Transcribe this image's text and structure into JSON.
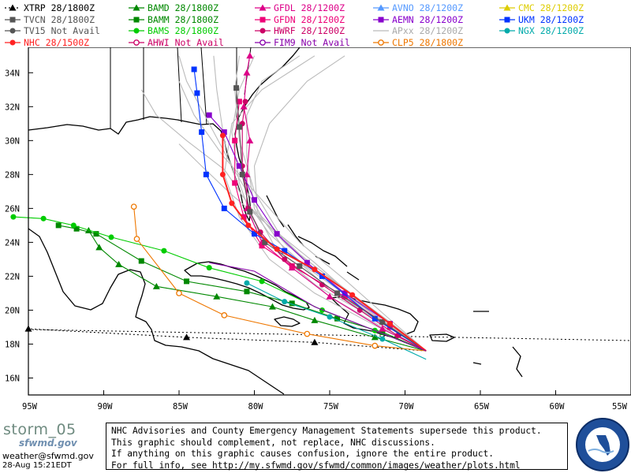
{
  "legend": [
    {
      "label": "XTRP 28/1800Z",
      "color": "#000000",
      "marker": "triangle",
      "dash": "dotted"
    },
    {
      "label": "BAMD 28/1800Z",
      "color": "#008800",
      "marker": "triangle",
      "dash": "solid"
    },
    {
      "label": "GFDL 28/1200Z",
      "color": "#dd0088",
      "marker": "triangle",
      "dash": "solid"
    },
    {
      "label": "AVNO 28/1200Z",
      "color": "#5599ff",
      "marker": "triangle",
      "dash": "solid"
    },
    {
      "label": "CMC  28/1200Z",
      "color": "#ddcc00",
      "marker": "triangle",
      "dash": "solid"
    },
    {
      "label": "TVCN 28/1800Z",
      "color": "#555555",
      "marker": "square",
      "dash": "solid"
    },
    {
      "label": "BAMM 28/1800Z",
      "color": "#008800",
      "marker": "square",
      "dash": "solid"
    },
    {
      "label": "GFDN 28/1200Z",
      "color": "#ee0077",
      "marker": "square",
      "dash": "solid"
    },
    {
      "label": "AEMN 28/1200Z",
      "color": "#8800cc",
      "marker": "square",
      "dash": "solid"
    },
    {
      "label": "UKM  28/1200Z",
      "color": "#0033ff",
      "marker": "square",
      "dash": "solid"
    },
    {
      "label": "TV15 Not Avail",
      "color": "#555555",
      "marker": "circle",
      "dash": "solid"
    },
    {
      "label": "BAMS 28/1800Z",
      "color": "#00cc00",
      "marker": "circle",
      "dash": "solid"
    },
    {
      "label": "HWRF 28/1200Z",
      "color": "#cc0066",
      "marker": "circle",
      "dash": "solid"
    },
    {
      "label": "APxx  28/1200Z",
      "color": "#bbbbbb",
      "marker": "none",
      "dash": "solid"
    },
    {
      "label": "NGX  28/1200Z",
      "color": "#00aaaa",
      "marker": "circle",
      "dash": "solid"
    },
    {
      "label": "NHC 28/1500Z",
      "color": "#ff2222",
      "marker": "circle",
      "dash": "solid"
    },
    {
      "label": "AHWI  Not Avail",
      "color": "#cc0066",
      "marker": "ring",
      "dash": "solid"
    },
    {
      "label": "FIM9  Not Avail",
      "color": "#8800aa",
      "marker": "ring",
      "dash": "solid"
    },
    {
      "label": "CLP5 28/1800Z",
      "color": "#ee7700",
      "marker": "ring",
      "dash": "solid"
    }
  ],
  "axes": {
    "lat_labels": [
      "34N",
      "32N",
      "30N",
      "28N",
      "26N",
      "24N",
      "22N",
      "20N",
      "18N",
      "16N"
    ],
    "lon_labels": [
      "95W",
      "90W",
      "85W",
      "80W",
      "75W",
      "70W",
      "65W",
      "60W",
      "55W"
    ],
    "lat_range": [
      15,
      35.5
    ],
    "lon_range": [
      -95,
      -55
    ]
  },
  "chart_data": {
    "type": "line",
    "origin": [
      -68.6,
      17.6
    ],
    "series": [
      {
        "name": "XTRP",
        "color": "#000000",
        "marker": "triangle",
        "points": [
          [
            -68.6,
            17.6
          ],
          [
            -76,
            18.1
          ],
          [
            -84.5,
            18.4
          ],
          [
            -95,
            18.9
          ]
        ]
      },
      {
        "name": "BAMD",
        "color": "#008800",
        "marker": "triangle",
        "points": [
          [
            -68.6,
            17.6
          ],
          [
            -72,
            18.4
          ],
          [
            -76,
            19.4
          ],
          [
            -78.8,
            20.2
          ],
          [
            -82.5,
            20.8
          ],
          [
            -86.5,
            21.4
          ],
          [
            -89,
            22.7
          ],
          [
            -90.3,
            23.7
          ],
          [
            -91,
            24.7
          ]
        ]
      },
      {
        "name": "BAMM",
        "color": "#008800",
        "marker": "square",
        "points": [
          [
            -68.6,
            17.6
          ],
          [
            -71.5,
            18.7
          ],
          [
            -74.5,
            19.5
          ],
          [
            -77.5,
            20.4
          ],
          [
            -80.5,
            21.1
          ],
          [
            -84.5,
            21.7
          ],
          [
            -87.5,
            22.9
          ],
          [
            -90.5,
            24.5
          ],
          [
            -91.8,
            24.8
          ],
          [
            -93,
            25
          ]
        ]
      },
      {
        "name": "BAMS",
        "color": "#00cc00",
        "marker": "circle",
        "points": [
          [
            -68.6,
            17.6
          ],
          [
            -72,
            18.8
          ],
          [
            -75.5,
            20
          ],
          [
            -79.5,
            21.7
          ],
          [
            -83,
            22.5
          ],
          [
            -86,
            23.5
          ],
          [
            -89.5,
            24.3
          ],
          [
            -92,
            25
          ],
          [
            -94,
            25.4
          ],
          [
            -96,
            25.5
          ]
        ]
      },
      {
        "name": "GFDL",
        "color": "#dd0088",
        "marker": "triangle",
        "points": [
          [
            -68.6,
            17.6
          ],
          [
            -71.5,
            18.9
          ],
          [
            -75,
            20.8
          ],
          [
            -77.5,
            22.5
          ],
          [
            -79.5,
            24
          ],
          [
            -80.5,
            26
          ],
          [
            -80.5,
            28
          ],
          [
            -80.3,
            30
          ],
          [
            -80.7,
            32
          ],
          [
            -80.5,
            34
          ],
          [
            -80.3,
            35
          ]
        ]
      },
      {
        "name": "GFDN",
        "color": "#ee0077",
        "marker": "square",
        "points": [
          [
            -68.6,
            17.6
          ],
          [
            -71,
            19
          ],
          [
            -74,
            20.8
          ],
          [
            -77.5,
            22.6
          ],
          [
            -79.5,
            23.8
          ],
          [
            -80.7,
            25.5
          ],
          [
            -81.3,
            27.5
          ],
          [
            -81.3,
            30
          ],
          [
            -81,
            32.3
          ]
        ]
      },
      {
        "name": "HWRF",
        "color": "#cc0066",
        "marker": "circle",
        "points": [
          [
            -68.6,
            17.6
          ],
          [
            -70.5,
            18.5
          ],
          [
            -73,
            20
          ],
          [
            -75.5,
            21.5
          ],
          [
            -78,
            23
          ],
          [
            -79.6,
            24.6
          ],
          [
            -80.4,
            26
          ],
          [
            -80.8,
            28.5
          ],
          [
            -80.8,
            31
          ],
          [
            -80.6,
            32.3
          ]
        ]
      },
      {
        "name": "AEMN",
        "color": "#8800cc",
        "marker": "square",
        "points": [
          [
            -68.6,
            17.6
          ],
          [
            -71,
            19.2
          ],
          [
            -74,
            21
          ],
          [
            -76.5,
            22.8
          ],
          [
            -78.5,
            24.5
          ],
          [
            -80,
            26.5
          ],
          [
            -81,
            28.5
          ],
          [
            -82,
            30.5
          ],
          [
            -83,
            31.5
          ]
        ]
      },
      {
        "name": "UKM",
        "color": "#0033ff",
        "marker": "square",
        "points": [
          [
            -68.6,
            17.6
          ],
          [
            -72,
            19.5
          ],
          [
            -75.5,
            22
          ],
          [
            -78,
            23.5
          ],
          [
            -80,
            24.5
          ],
          [
            -82,
            26
          ],
          [
            -83.2,
            28
          ],
          [
            -83.5,
            30.5
          ],
          [
            -83.8,
            32.8
          ],
          [
            -84,
            34.2
          ]
        ]
      },
      {
        "name": "TVCN",
        "color": "#555555",
        "marker": "square",
        "points": [
          [
            -68.6,
            17.6
          ],
          [
            -71.5,
            19.3
          ],
          [
            -74.5,
            21
          ],
          [
            -77,
            22.6
          ],
          [
            -79.3,
            24
          ],
          [
            -80.3,
            25.8
          ],
          [
            -80.8,
            28
          ],
          [
            -81,
            30.8
          ],
          [
            -81.2,
            33.1
          ]
        ]
      },
      {
        "name": "NGX",
        "color": "#00aaaa",
        "marker": "circle",
        "points": [
          [
            -68.6,
            17.1
          ],
          [
            -71.5,
            18.3
          ],
          [
            -75,
            19.6
          ],
          [
            -78,
            20.5
          ],
          [
            -80.5,
            21.6
          ]
        ]
      },
      {
        "name": "NHC",
        "color": "#ff2222",
        "marker": "circle",
        "points": [
          [
            -68.6,
            17.6
          ],
          [
            -71,
            19.2
          ],
          [
            -73.5,
            20.9
          ],
          [
            -76,
            22.4
          ],
          [
            -78.5,
            23.6
          ],
          [
            -80.4,
            25
          ],
          [
            -81.5,
            26.3
          ],
          [
            -82.1,
            28
          ],
          [
            -82.1,
            30.3
          ]
        ]
      },
      {
        "name": "CLP5",
        "color": "#ee7700",
        "marker": "ring",
        "points": [
          [
            -68.6,
            17.6
          ],
          [
            -72,
            17.9
          ],
          [
            -76.5,
            18.6
          ],
          [
            -82,
            19.7
          ],
          [
            -85,
            21
          ],
          [
            -87.8,
            24.2
          ],
          [
            -88,
            26.1
          ]
        ]
      },
      {
        "name": "FIM9",
        "color": "#8800aa",
        "marker": "none",
        "points": [
          [
            -68.6,
            17.6
          ],
          [
            -72,
            18.8
          ],
          [
            -76,
            20.2
          ],
          [
            -80,
            22.3
          ],
          [
            -83,
            22.8
          ]
        ]
      },
      {
        "name": "APxx",
        "color": "#bbbbbb",
        "marker": "none",
        "points": [
          [
            -68.6,
            17.6
          ],
          [
            -73,
            20.5
          ],
          [
            -77,
            23.3
          ],
          [
            -79.5,
            25.5
          ],
          [
            -81.5,
            28.5
          ],
          [
            -83,
            31
          ],
          [
            -84.5,
            33.5
          ],
          [
            -85,
            35
          ]
        ]
      },
      {
        "name": "APxx",
        "color": "#bbbbbb",
        "marker": "none",
        "points": [
          [
            -68.6,
            17.6
          ],
          [
            -72.5,
            20
          ],
          [
            -76.5,
            22.5
          ],
          [
            -79,
            24.5
          ],
          [
            -81,
            27
          ],
          [
            -82,
            30
          ],
          [
            -82.5,
            33
          ],
          [
            -82.7,
            35
          ]
        ]
      },
      {
        "name": "APxx",
        "color": "#bbbbbb",
        "marker": "none",
        "points": [
          [
            -68.6,
            17.6
          ],
          [
            -72,
            19.5
          ],
          [
            -76,
            21.5
          ],
          [
            -78.5,
            23.5
          ],
          [
            -80,
            26
          ],
          [
            -80.5,
            29
          ],
          [
            -80.5,
            31.5
          ],
          [
            -79.5,
            33.5
          ],
          [
            -77,
            35
          ]
        ]
      },
      {
        "name": "APxx",
        "color": "#bbbbbb",
        "marker": "none",
        "points": [
          [
            -68.6,
            17.6
          ],
          [
            -71.5,
            19
          ],
          [
            -75,
            20.8
          ],
          [
            -78,
            23
          ],
          [
            -80,
            25
          ],
          [
            -81,
            27.5
          ],
          [
            -81.5,
            30.5
          ],
          [
            -81,
            33
          ],
          [
            -80,
            35
          ]
        ]
      },
      {
        "name": "APxx",
        "color": "#bbbbbb",
        "marker": "none",
        "points": [
          [
            -68.6,
            17.6
          ],
          [
            -71.2,
            19.6
          ],
          [
            -74,
            21.8
          ],
          [
            -77,
            24
          ],
          [
            -79.5,
            26.5
          ],
          [
            -82,
            29
          ],
          [
            -84,
            31.5
          ],
          [
            -85,
            33.5
          ]
        ]
      },
      {
        "name": "APxx",
        "color": "#bbbbbb",
        "marker": "none",
        "points": [
          [
            -68.6,
            17.6
          ],
          [
            -72,
            19.7
          ],
          [
            -75.5,
            22
          ],
          [
            -78,
            24
          ],
          [
            -80,
            27
          ],
          [
            -81,
            30
          ],
          [
            -81.3,
            33
          ],
          [
            -81,
            35
          ]
        ]
      },
      {
        "name": "APxx",
        "color": "#bbbbbb",
        "marker": "none",
        "points": [
          [
            -68.6,
            17.6
          ],
          [
            -71.8,
            19.4
          ],
          [
            -75,
            21.2
          ],
          [
            -78,
            23.6
          ],
          [
            -79.8,
            25.8
          ],
          [
            -80,
            28.5
          ],
          [
            -79,
            31
          ],
          [
            -76.5,
            33.5
          ],
          [
            -74,
            35
          ]
        ]
      },
      {
        "name": "APxx",
        "color": "#bbbbbb",
        "marker": "none",
        "points": [
          [
            -68.6,
            17.6
          ],
          [
            -72.3,
            19.9
          ],
          [
            -76,
            22.8
          ],
          [
            -78.8,
            24.8
          ],
          [
            -81.5,
            26.8
          ],
          [
            -83.5,
            28.5
          ],
          [
            -85,
            29.8
          ]
        ]
      },
      {
        "name": "APxx",
        "color": "#bbbbbb",
        "marker": "none",
        "points": [
          [
            -68.6,
            17.6
          ],
          [
            -71,
            19.3
          ],
          [
            -74.5,
            21.6
          ],
          [
            -77.8,
            23.8
          ],
          [
            -80.2,
            26
          ],
          [
            -82,
            28.3
          ],
          [
            -84.5,
            30
          ],
          [
            -86.5,
            31.5
          ],
          [
            -87.5,
            33
          ]
        ]
      },
      {
        "name": "APxx",
        "color": "#bbbbbb",
        "marker": "none",
        "points": [
          [
            -68.6,
            17.6
          ],
          [
            -72,
            19.1
          ],
          [
            -76,
            21
          ],
          [
            -79,
            23
          ],
          [
            -81,
            25.5
          ],
          [
            -82,
            28
          ],
          [
            -81.5,
            31
          ],
          [
            -79.5,
            33
          ],
          [
            -76,
            35
          ]
        ]
      }
    ]
  },
  "footer": {
    "logo": "storm_05",
    "logo_sub": "sfwmd.gov",
    "email": "weather@sfwmd.gov",
    "timestamp": "28-Aug 15:21EDT",
    "disclaimer": [
      "NHC Advisories and County Emergency Management Statements supersede this product.",
      "This graphic should complement, not replace, NHC discussions.",
      "If anything on this graphic causes confusion, ignore the entire product.",
      "For full info, see  http://my.sfwmd.gov/sfwmd/common/images/weather/plots.html"
    ],
    "seal_text": "SOUTH FLORIDA WATER MANAGEMENT DISTRICT"
  }
}
